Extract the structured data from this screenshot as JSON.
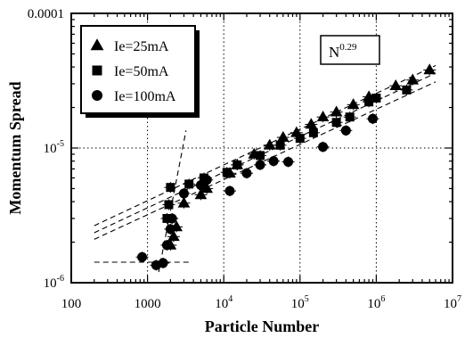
{
  "chart_data": {
    "type": "scatter",
    "xlabel": "Particle Number",
    "ylabel": "Momentum Spread",
    "xscale": "log",
    "yscale": "log",
    "xlim": [
      100,
      10000000
    ],
    "ylim": [
      1e-06,
      0.0001
    ],
    "x_tick_labels": [
      "100",
      "1000",
      "10",
      "10",
      "10",
      "10"
    ],
    "x_tick_exponents": [
      "",
      "",
      "4",
      "5",
      "6",
      "7"
    ],
    "y_tick_labels": [
      "0.0001",
      "10",
      "10"
    ],
    "y_tick_exponents": [
      "",
      "-5",
      "-6"
    ],
    "grid": "dotted, at decades",
    "legend_position": "top-left",
    "annotation": {
      "base": "N",
      "exponent": "0.29"
    },
    "series": [
      {
        "name": "Ie=25mA",
        "marker": "triangle",
        "points": [
          [
            2000,
            1.9e-06
          ],
          [
            2200,
            2.2e-06
          ],
          [
            2400,
            2.6e-06
          ],
          [
            3000,
            3.9e-06
          ],
          [
            5000,
            4.5e-06
          ],
          [
            6000,
            5e-06
          ],
          [
            12000,
            6.5e-06
          ],
          [
            15000,
            7.5e-06
          ],
          [
            25000,
            9e-06
          ],
          [
            40000,
            1.05e-05
          ],
          [
            60000,
            1.2e-05
          ],
          [
            90000,
            1.3e-05
          ],
          [
            140000,
            1.5e-05
          ],
          [
            200000,
            1.7e-05
          ],
          [
            300000,
            1.85e-05
          ],
          [
            500000,
            2.1e-05
          ],
          [
            800000,
            2.4e-05
          ],
          [
            1800000,
            2.9e-05
          ],
          [
            3000000,
            3.2e-05
          ],
          [
            5000000,
            3.8e-05
          ]
        ]
      },
      {
        "name": "Ie=50mA",
        "marker": "square",
        "points": [
          [
            1800,
            3e-06
          ],
          [
            1900,
            3.8e-06
          ],
          [
            2000,
            5.1e-06
          ],
          [
            3500,
            5.4e-06
          ],
          [
            5500,
            6e-06
          ],
          [
            11000,
            6.6e-06
          ],
          [
            15000,
            7.5e-06
          ],
          [
            30000,
            8.8e-06
          ],
          [
            55000,
            1.05e-05
          ],
          [
            100000,
            1.18e-05
          ],
          [
            150000,
            1.3e-05
          ],
          [
            300000,
            1.55e-05
          ],
          [
            450000,
            1.7e-05
          ],
          [
            800000,
            2.2e-05
          ],
          [
            1000000,
            2.35e-05
          ],
          [
            2500000,
            2.7e-05
          ]
        ]
      },
      {
        "name": "Ie=100mA",
        "marker": "circle",
        "points": [
          [
            850,
            1.55e-06
          ],
          [
            1300,
            1.35e-06
          ],
          [
            1600,
            1.4e-06
          ],
          [
            1800,
            1.9e-06
          ],
          [
            2000,
            2.5e-06
          ],
          [
            2100,
            3e-06
          ],
          [
            3000,
            4.6e-06
          ],
          [
            5000,
            5.3e-06
          ],
          [
            6000,
            5.8e-06
          ],
          [
            12000,
            4.8e-06
          ],
          [
            20000,
            6.5e-06
          ],
          [
            30000,
            7.5e-06
          ],
          [
            45000,
            8e-06
          ],
          [
            70000,
            7.9e-06
          ],
          [
            200000,
            1.02e-05
          ],
          [
            400000,
            1.35e-05
          ],
          [
            900000,
            1.65e-05
          ]
        ]
      }
    ],
    "guide_lines": [
      {
        "from": [
          200,
          2.65e-06
        ],
        "to": [
          6000000,
          4.1e-05
        ]
      },
      {
        "from": [
          200,
          2.35e-06
        ],
        "to": [
          6000000,
          3.6e-05
        ]
      },
      {
        "from": [
          200,
          2.1e-06
        ],
        "to": [
          6000000,
          3.1e-05
        ]
      },
      {
        "from": [
          200,
          1.42e-06
        ],
        "to": [
          3500,
          1.42e-06
        ]
      },
      {
        "from": [
          1400,
          1.2e-06
        ],
        "to": [
          3200,
          1.35e-05
        ]
      }
    ]
  }
}
